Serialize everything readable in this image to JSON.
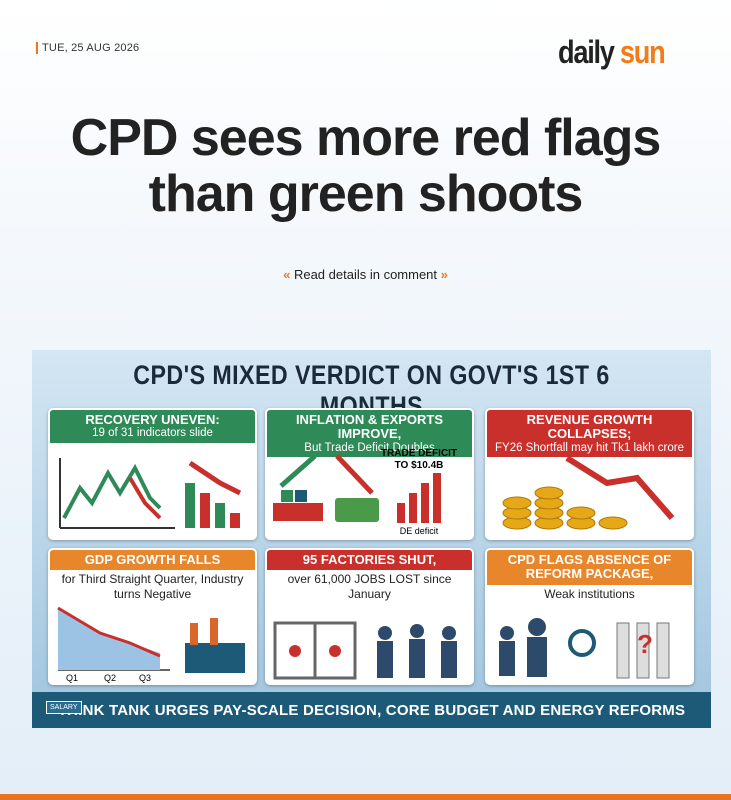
{
  "header": {
    "date": "TUE, 25 AUG 2026",
    "logo_daily": "daily",
    "logo_sun": "sun"
  },
  "headline": {
    "line1": "CPD sees more red flags",
    "line2": "than green shoots"
  },
  "cta": "Read details in comment",
  "infographic": {
    "title": "CPD'S MIXED VERDICT ON GOVT'S 1ST 6 MONTHS",
    "panels": [
      {
        "title": "RECOVERY UNEVEN:",
        "subtitle": "19 of 31 indicators slide"
      },
      {
        "title": "INFLATION & EXPORTS IMPROVE,",
        "subtitle": "But Trade Deficit Doubles",
        "labels": [
          "TRADE DEFICIT",
          "TO $10.4B",
          "DE deficit"
        ]
      },
      {
        "title": "REVENUE GROWTH COLLAPSES;",
        "subtitle": "FY26 Shortfall may hit Tk1 lakh crore"
      },
      {
        "title": "GDP GROWTH FALLS",
        "subtitle": "for Third Straight Quarter, Industry turns Negative",
        "labels": [
          "Q1",
          "Q2",
          "Q3"
        ]
      },
      {
        "title": "95 FACTORIES SHUT,",
        "subtitle": "over 61,000 JOBS LOST since January"
      },
      {
        "title": "CPD FLAGS ABSENCE OF REFORM PACKAGE,",
        "subtitle": "Weak institutions"
      }
    ],
    "banner": "THINK TANK URGES PAY-SCALE DECISION, CORE BUDGET AND ENERGY REFORMS",
    "banner_icon": "SALARY"
  }
}
